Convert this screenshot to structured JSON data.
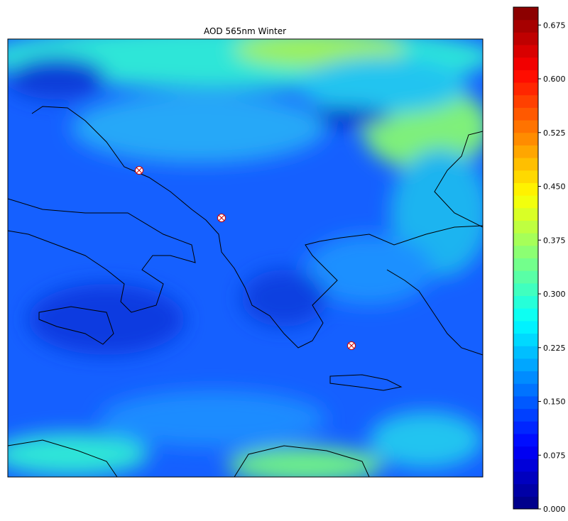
{
  "title": "AOD 565nm Winter",
  "colorbar": {
    "lim": [
      0,
      0.7
    ],
    "ticks": [
      {
        "value": 0,
        "label": "0.000"
      },
      0.075,
      {
        "value": 0.15,
        "label": "0.150"
      },
      0.225,
      {
        "value": 0.3,
        "label": "0.300"
      },
      0.375,
      {
        "value": 0.45,
        "label": "0.450"
      },
      0.525,
      {
        "value": 0.6,
        "label": "0.600"
      },
      0.675
    ]
  }
}
